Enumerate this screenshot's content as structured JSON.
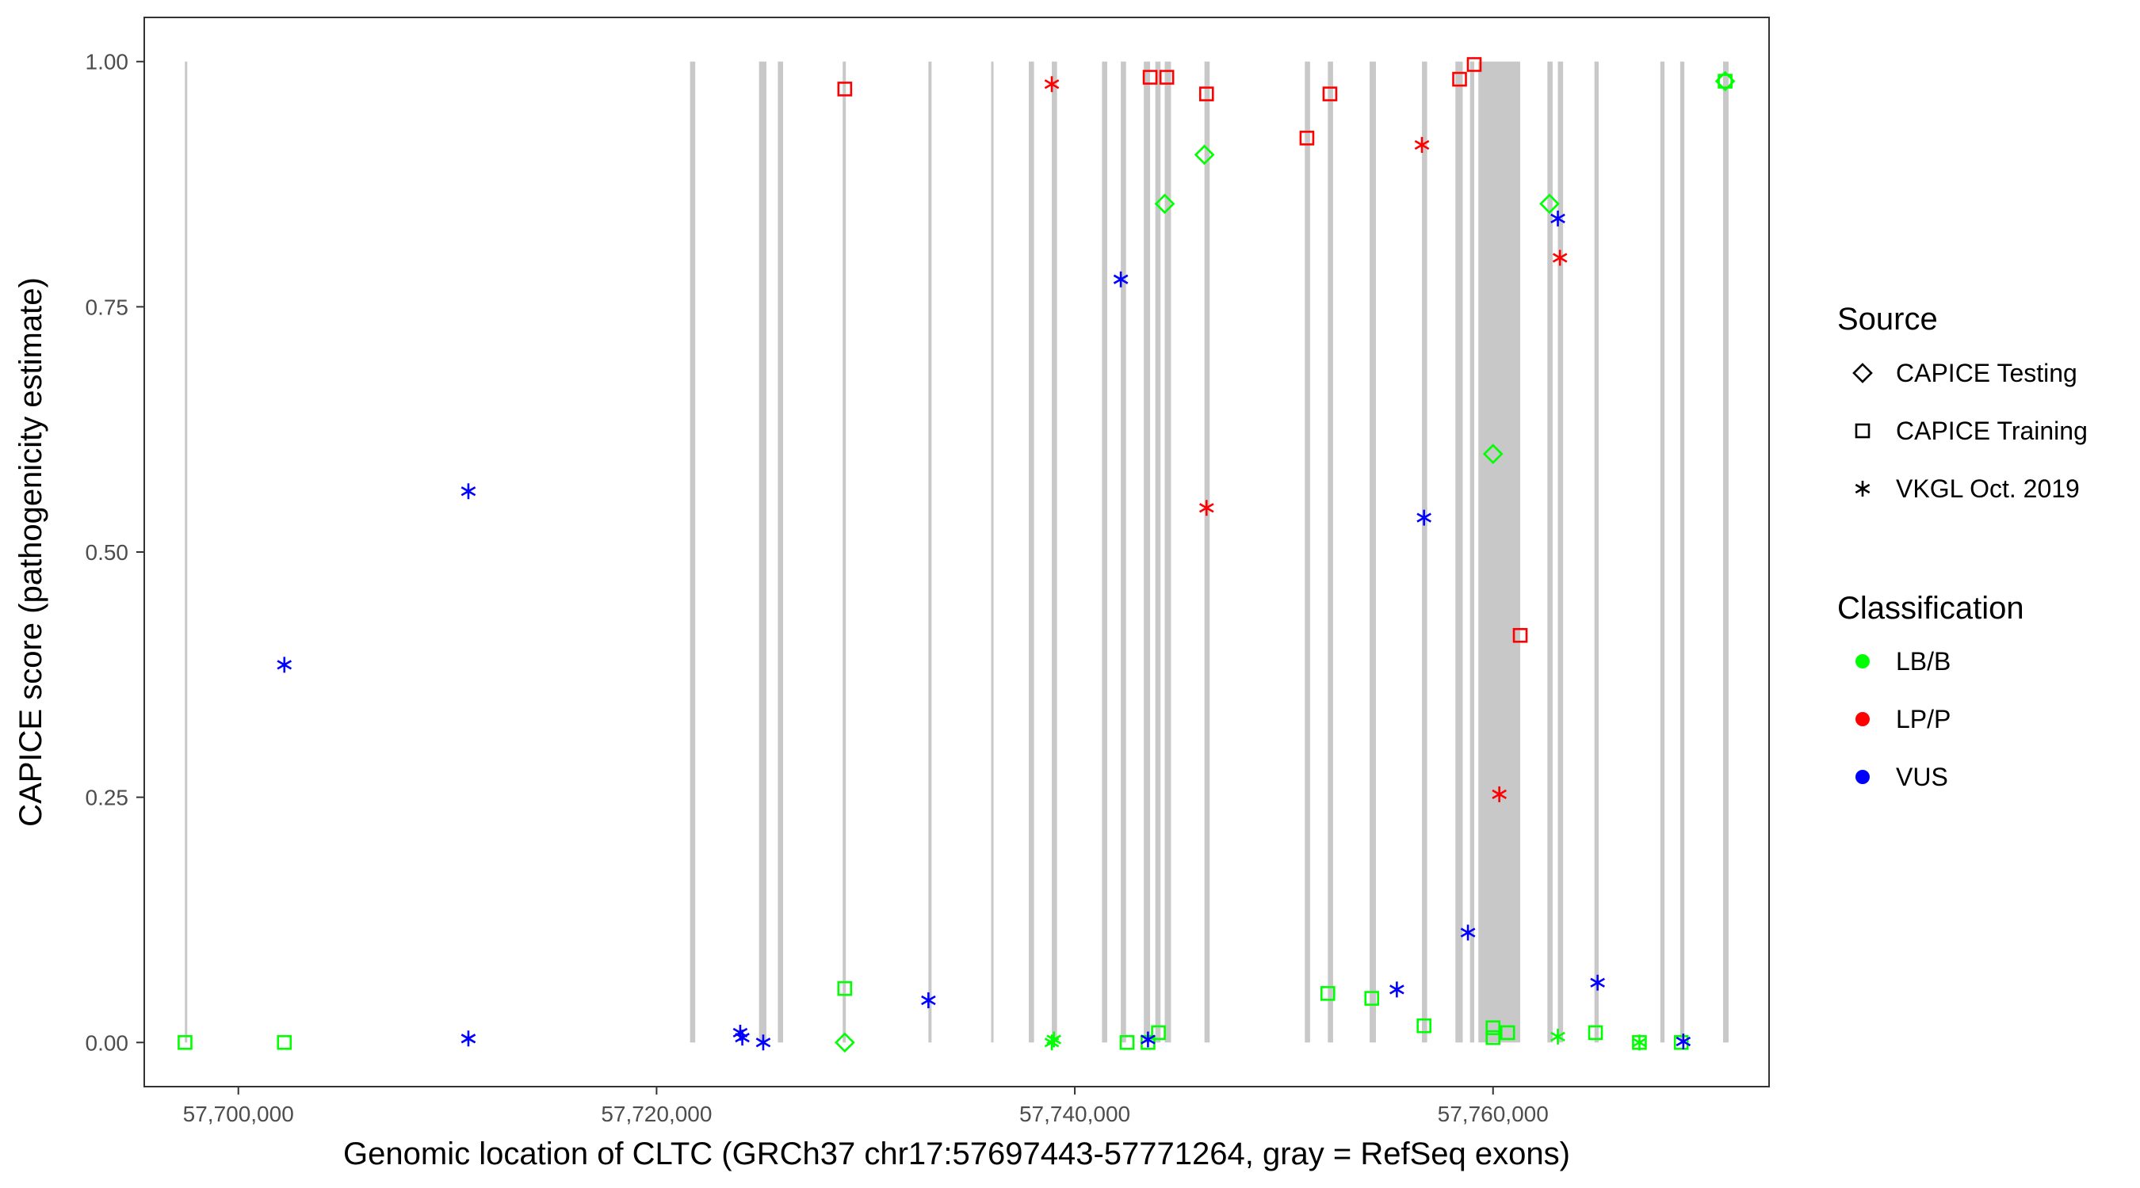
{
  "chart_data": {
    "type": "scatter",
    "xlabel": "Genomic location of CLTC (GRCh37 chr17:57697443-57771264, gray = RefSeq exons)",
    "ylabel": "CAPICE score (pathogenicity estimate)",
    "xlim": [
      57695500,
      57773200
    ],
    "ylim": [
      -0.045,
      1.045
    ],
    "x_ticks": [
      57700000,
      57720000,
      57740000,
      57760000
    ],
    "x_tick_labels": [
      "57,700,000",
      "57,720,000",
      "57,740,000",
      "57,760,000"
    ],
    "y_ticks": [
      0.0,
      0.25,
      0.5,
      0.75,
      1.0
    ],
    "y_tick_labels": [
      "0.00",
      "0.25",
      "0.50",
      "0.75",
      "1.00"
    ],
    "grid": false,
    "exons": [
      [
        57697443,
        57697520
      ],
      [
        57721600,
        57721850
      ],
      [
        57724900,
        57725250
      ],
      [
        57725800,
        57726050
      ],
      [
        57728900,
        57729050
      ],
      [
        57733000,
        57733150
      ],
      [
        57736000,
        57736070
      ],
      [
        57737800,
        57738050
      ],
      [
        57738900,
        57739150
      ],
      [
        57741300,
        57741550
      ],
      [
        57742200,
        57742450
      ],
      [
        57743300,
        57743600
      ],
      [
        57743850,
        57744100
      ],
      [
        57744300,
        57744600
      ],
      [
        57746200,
        57746450
      ],
      [
        57751000,
        57751250
      ],
      [
        57752100,
        57752350
      ],
      [
        57754100,
        57754400
      ],
      [
        57756600,
        57756850
      ],
      [
        57758200,
        57758550
      ],
      [
        57758900,
        57759100
      ],
      [
        57759300,
        57761300
      ],
      [
        57762600,
        57762850
      ],
      [
        57763100,
        57763350
      ],
      [
        57764850,
        57765050
      ],
      [
        57768000,
        57768200
      ],
      [
        57768950,
        57769150
      ],
      [
        57771000,
        57771264
      ]
    ],
    "legend": {
      "position": "right",
      "source_title": "Source",
      "source_items": [
        {
          "label": "CAPICE Testing",
          "shape": "diamond"
        },
        {
          "label": "CAPICE Training",
          "shape": "square"
        },
        {
          "label": "VKGL Oct. 2019",
          "shape": "asterisk"
        }
      ],
      "class_title": "Classification",
      "class_items": [
        {
          "label": "LB/B",
          "color": "#00ff00"
        },
        {
          "label": "LP/P",
          "color": "#ff0000"
        },
        {
          "label": "VUS",
          "color": "#0000ff"
        }
      ]
    },
    "series": [
      {
        "name": "LB/B",
        "color": "#00ff00",
        "points": [
          {
            "x": 57697450,
            "y": 0.0,
            "shape": "square"
          },
          {
            "x": 57702200,
            "y": 0.0,
            "shape": "square"
          },
          {
            "x": 57729000,
            "y": 0.055,
            "shape": "square"
          },
          {
            "x": 57729000,
            "y": 0.0,
            "shape": "diamond"
          },
          {
            "x": 57739000,
            "y": 0.003,
            "shape": "asterisk"
          },
          {
            "x": 57738900,
            "y": 0.0,
            "shape": "asterisk"
          },
          {
            "x": 57742500,
            "y": 0.0,
            "shape": "square"
          },
          {
            "x": 57743500,
            "y": 0.0,
            "shape": "square"
          },
          {
            "x": 57744000,
            "y": 0.01,
            "shape": "square"
          },
          {
            "x": 57744300,
            "y": 0.855,
            "shape": "diamond"
          },
          {
            "x": 57746200,
            "y": 0.905,
            "shape": "diamond"
          },
          {
            "x": 57752100,
            "y": 0.05,
            "shape": "square"
          },
          {
            "x": 57754200,
            "y": 0.045,
            "shape": "square"
          },
          {
            "x": 57756700,
            "y": 0.017,
            "shape": "square"
          },
          {
            "x": 57760000,
            "y": 0.6,
            "shape": "diamond"
          },
          {
            "x": 57760000,
            "y": 0.015,
            "shape": "square"
          },
          {
            "x": 57760000,
            "y": 0.005,
            "shape": "square"
          },
          {
            "x": 57760700,
            "y": 0.01,
            "shape": "square"
          },
          {
            "x": 57762700,
            "y": 0.855,
            "shape": "diamond"
          },
          {
            "x": 57763100,
            "y": 0.006,
            "shape": "asterisk"
          },
          {
            "x": 57764900,
            "y": 0.01,
            "shape": "square"
          },
          {
            "x": 57767000,
            "y": 0.0,
            "shape": "square"
          },
          {
            "x": 57767000,
            "y": 0.0,
            "shape": "asterisk"
          },
          {
            "x": 57769000,
            "y": 0.0,
            "shape": "square"
          },
          {
            "x": 57771100,
            "y": 0.98,
            "shape": "square"
          },
          {
            "x": 57771100,
            "y": 0.98,
            "shape": "diamond"
          }
        ]
      },
      {
        "name": "LP/P",
        "color": "#ff0000",
        "points": [
          {
            "x": 57729000,
            "y": 0.972,
            "shape": "square"
          },
          {
            "x": 57738900,
            "y": 0.977,
            "shape": "asterisk"
          },
          {
            "x": 57743600,
            "y": 0.984,
            "shape": "square"
          },
          {
            "x": 57744400,
            "y": 0.984,
            "shape": "square"
          },
          {
            "x": 57746300,
            "y": 0.967,
            "shape": "square"
          },
          {
            "x": 57746300,
            "y": 0.545,
            "shape": "asterisk"
          },
          {
            "x": 57751100,
            "y": 0.922,
            "shape": "square"
          },
          {
            "x": 57752200,
            "y": 0.967,
            "shape": "square"
          },
          {
            "x": 57756600,
            "y": 0.915,
            "shape": "asterisk"
          },
          {
            "x": 57758400,
            "y": 0.982,
            "shape": "square"
          },
          {
            "x": 57759100,
            "y": 0.997,
            "shape": "square"
          },
          {
            "x": 57760300,
            "y": 0.253,
            "shape": "asterisk"
          },
          {
            "x": 57761300,
            "y": 0.415,
            "shape": "square"
          },
          {
            "x": 57763200,
            "y": 0.8,
            "shape": "asterisk"
          }
        ]
      },
      {
        "name": "VUS",
        "color": "#0000ff",
        "points": [
          {
            "x": 57702200,
            "y": 0.385,
            "shape": "asterisk"
          },
          {
            "x": 57711000,
            "y": 0.562,
            "shape": "asterisk"
          },
          {
            "x": 57711000,
            "y": 0.004,
            "shape": "asterisk"
          },
          {
            "x": 57724000,
            "y": 0.01,
            "shape": "asterisk"
          },
          {
            "x": 57724100,
            "y": 0.005,
            "shape": "asterisk"
          },
          {
            "x": 57725100,
            "y": 0.0,
            "shape": "asterisk"
          },
          {
            "x": 57733000,
            "y": 0.043,
            "shape": "asterisk"
          },
          {
            "x": 57742200,
            "y": 0.778,
            "shape": "asterisk"
          },
          {
            "x": 57743500,
            "y": 0.003,
            "shape": "asterisk"
          },
          {
            "x": 57755400,
            "y": 0.054,
            "shape": "asterisk"
          },
          {
            "x": 57756700,
            "y": 0.535,
            "shape": "asterisk"
          },
          {
            "x": 57758800,
            "y": 0.112,
            "shape": "asterisk"
          },
          {
            "x": 57763100,
            "y": 0.84,
            "shape": "asterisk"
          },
          {
            "x": 57765000,
            "y": 0.061,
            "shape": "asterisk"
          },
          {
            "x": 57769100,
            "y": 0.001,
            "shape": "asterisk"
          }
        ]
      }
    ]
  }
}
